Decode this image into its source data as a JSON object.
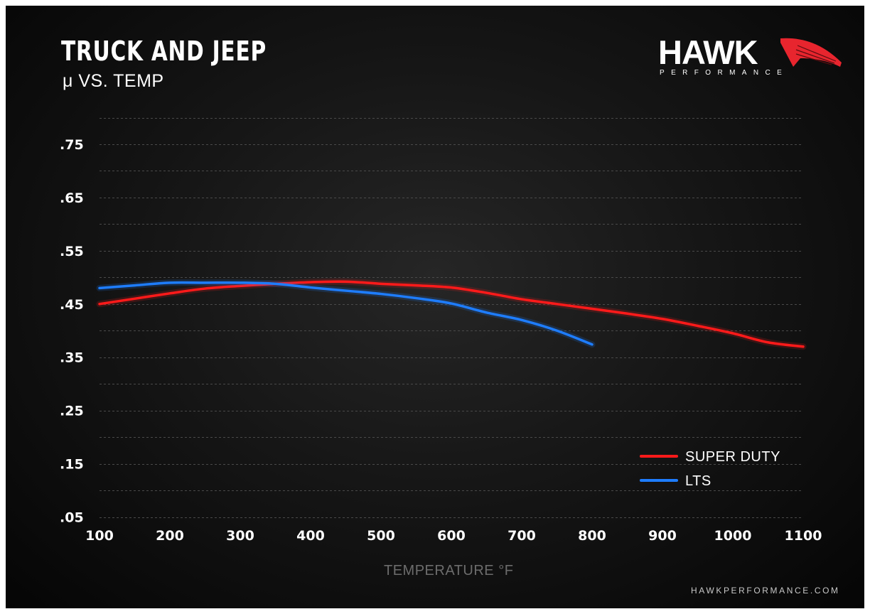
{
  "header": {
    "title": "TRUCK AND JEEP",
    "subtitle": "μ VS. TEMP"
  },
  "brand": {
    "logo_word": "HAWK",
    "logo_sub": "PERFORMANCE",
    "website": "HAWKPERFORMANCE.COM"
  },
  "colors": {
    "background": "#111111",
    "super_duty": "#ff1a1a",
    "lts": "#1e7dff",
    "grid": "#4a4a4a",
    "logo_wing": "#e8252e"
  },
  "chart_data": {
    "type": "line",
    "title": "TRUCK AND JEEP",
    "subtitle": "μ VS. TEMP",
    "xlabel": "TEMPERATURE °F",
    "ylabel": "",
    "xlim": [
      100,
      1100
    ],
    "ylim": [
      0,
      0.8
    ],
    "x_ticks": [
      100,
      200,
      300,
      400,
      500,
      600,
      700,
      800,
      900,
      1000,
      1100
    ],
    "y_ticks": [
      0.05,
      0.15,
      0.25,
      0.35,
      0.45,
      0.55,
      0.65,
      0.75
    ],
    "y_tick_labels": [
      ".05",
      ".15",
      ".25",
      ".35",
      ".45",
      ".55",
      ".65",
      ".75"
    ],
    "grid": true,
    "grid_step": 0.05,
    "legend_position": "bottom-right",
    "series": [
      {
        "name": "SUPER DUTY",
        "color": "#ff1a1a",
        "x": [
          100,
          150,
          200,
          250,
          300,
          350,
          400,
          450,
          500,
          550,
          600,
          650,
          700,
          750,
          800,
          850,
          900,
          950,
          1000,
          1050,
          1100
        ],
        "y": [
          0.45,
          0.46,
          0.47,
          0.479,
          0.484,
          0.488,
          0.491,
          0.492,
          0.488,
          0.485,
          0.481,
          0.471,
          0.459,
          0.45,
          0.441,
          0.432,
          0.422,
          0.409,
          0.395,
          0.378,
          0.37
        ]
      },
      {
        "name": "LTS",
        "color": "#1e7dff",
        "x": [
          100,
          150,
          200,
          250,
          300,
          350,
          400,
          450,
          500,
          550,
          600,
          650,
          700,
          750,
          800
        ],
        "y": [
          0.48,
          0.485,
          0.49,
          0.49,
          0.49,
          0.488,
          0.481,
          0.475,
          0.469,
          0.461,
          0.451,
          0.434,
          0.42,
          0.4,
          0.374
        ]
      }
    ]
  }
}
